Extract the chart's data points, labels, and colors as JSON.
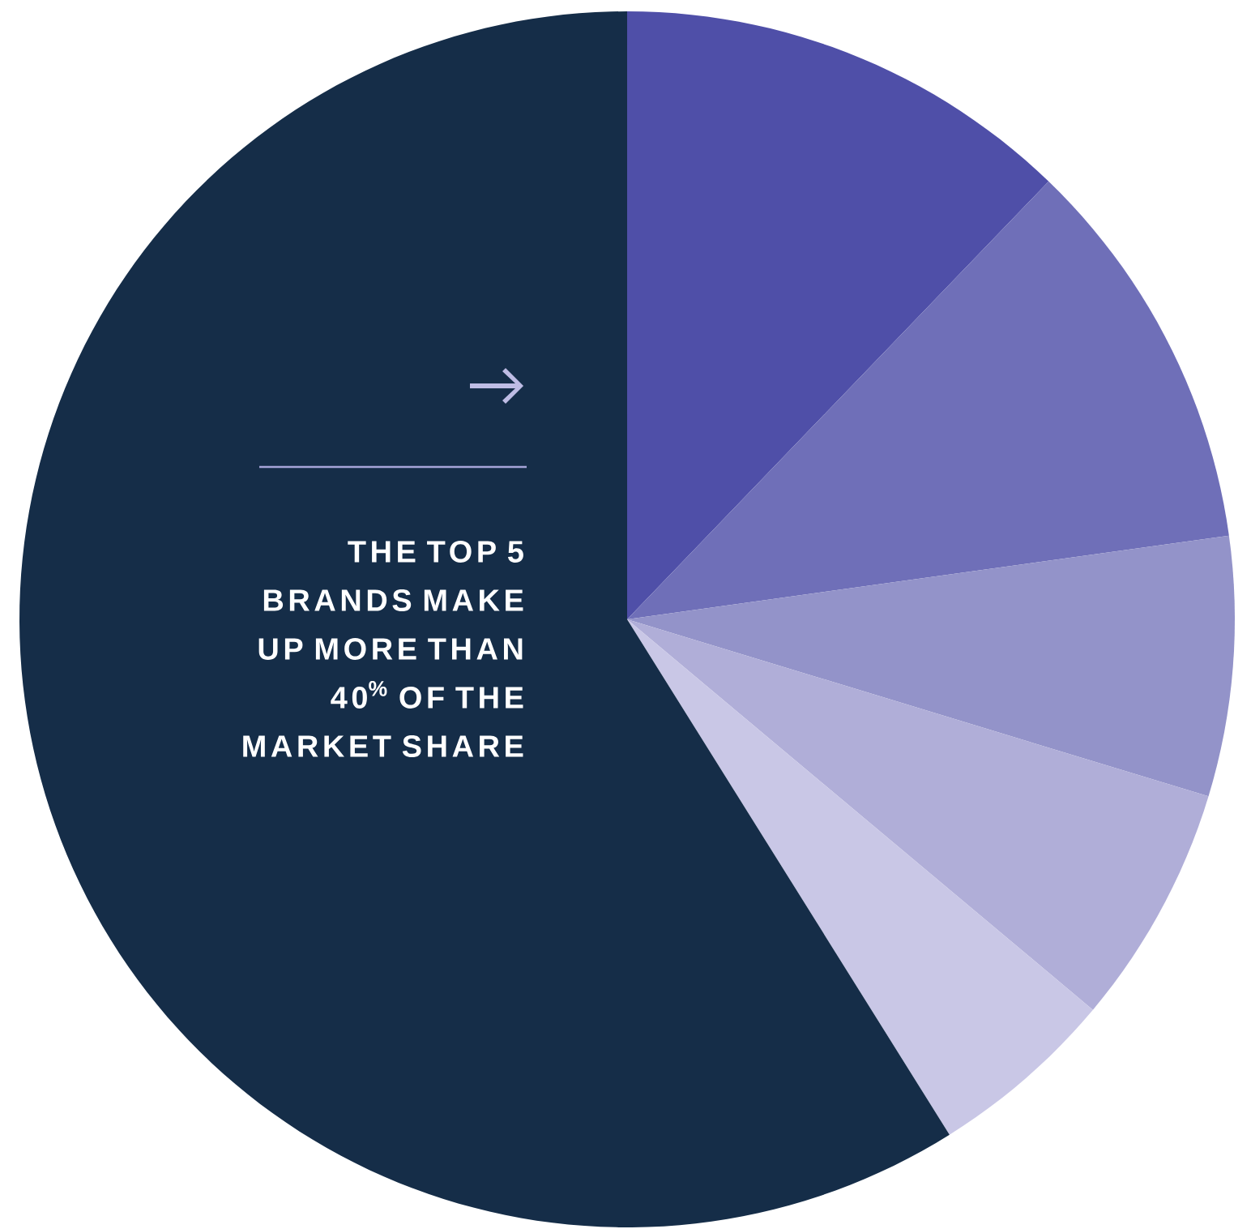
{
  "chart_data": {
    "type": "pie",
    "categories": [
      null,
      null,
      null,
      null,
      null,
      null
    ],
    "values": [
      12.2,
      10.6,
      6.9,
      6.4,
      5.0,
      58.9
    ],
    "colors": [
      "#4f4fa8",
      "#6f6fb8",
      "#9393c9",
      "#b0aed8",
      "#c9c7e6",
      "#152d48"
    ],
    "annotations": [
      "THE TOP 5 BRANDS MAKE UP MORE THAN 40$^{%}$ OF THE MARKET SHARE"
    ]
  }
}
